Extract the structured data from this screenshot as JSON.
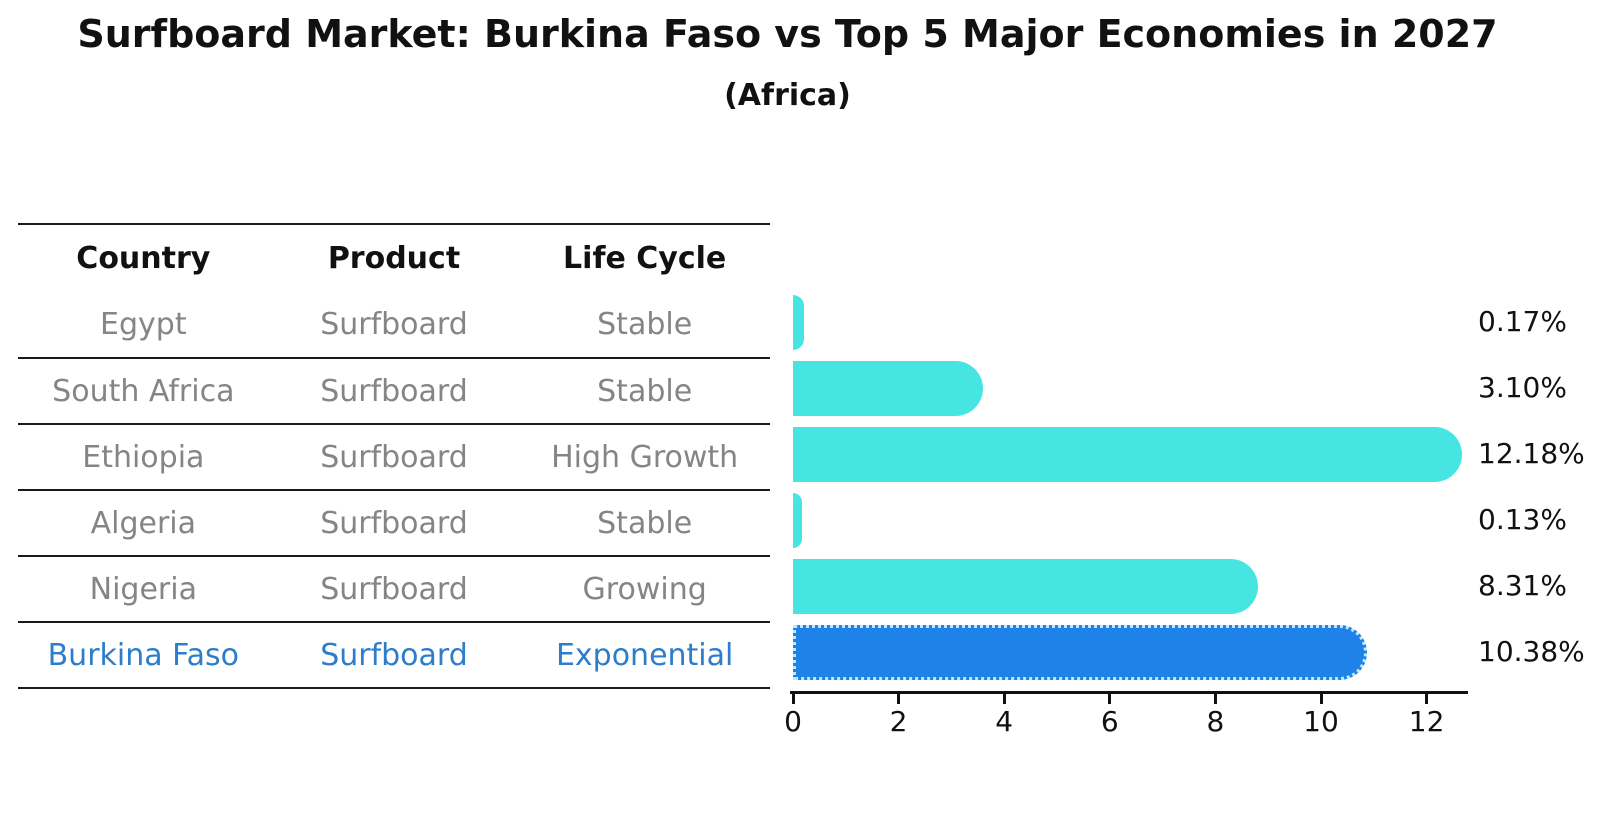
{
  "chart_data": {
    "type": "bar",
    "orientation": "horizontal",
    "title": "Surfboard Market: Burkina Faso vs Top 5 Major Economies in 2027",
    "subtitle": "(Africa)",
    "categories": [
      "Egypt",
      "South Africa",
      "Ethiopia",
      "Algeria",
      "Nigeria",
      "Burkina Faso"
    ],
    "values": [
      0.17,
      3.1,
      12.18,
      0.13,
      8.31,
      10.38
    ],
    "value_labels": [
      "0.17%",
      "3.10%",
      "12.18%",
      "0.13%",
      "8.31%",
      "10.38%"
    ],
    "x_ticks": [
      "0",
      "2",
      "4",
      "6",
      "8",
      "10",
      "12"
    ],
    "xlim": [
      0,
      12.8
    ],
    "grid": false,
    "legend": false,
    "highlight_index": 5
  },
  "table": {
    "headers": [
      "Country",
      "Product",
      "Life Cycle"
    ],
    "rows": [
      {
        "country": "Egypt",
        "product": "Surfboard",
        "life_cycle": "Stable",
        "highlight": false
      },
      {
        "country": "South Africa",
        "product": "Surfboard",
        "life_cycle": "Stable",
        "highlight": false
      },
      {
        "country": "Ethiopia",
        "product": "Surfboard",
        "life_cycle": "High Growth",
        "highlight": false
      },
      {
        "country": "Algeria",
        "product": "Surfboard",
        "life_cycle": "Stable",
        "highlight": false
      },
      {
        "country": "Nigeria",
        "product": "Surfboard",
        "life_cycle": "Growing",
        "highlight": false
      },
      {
        "country": "Burkina Faso",
        "product": "Surfboard",
        "life_cycle": "Exponential",
        "highlight": true
      }
    ]
  },
  "colors": {
    "bar": "#46e5e2",
    "highlight_bar": "#1e82e8",
    "highlight_border": "#bfe9fb",
    "highlight_text": "#2d7dca",
    "row_text": "#858585",
    "header_text": "#111111"
  }
}
